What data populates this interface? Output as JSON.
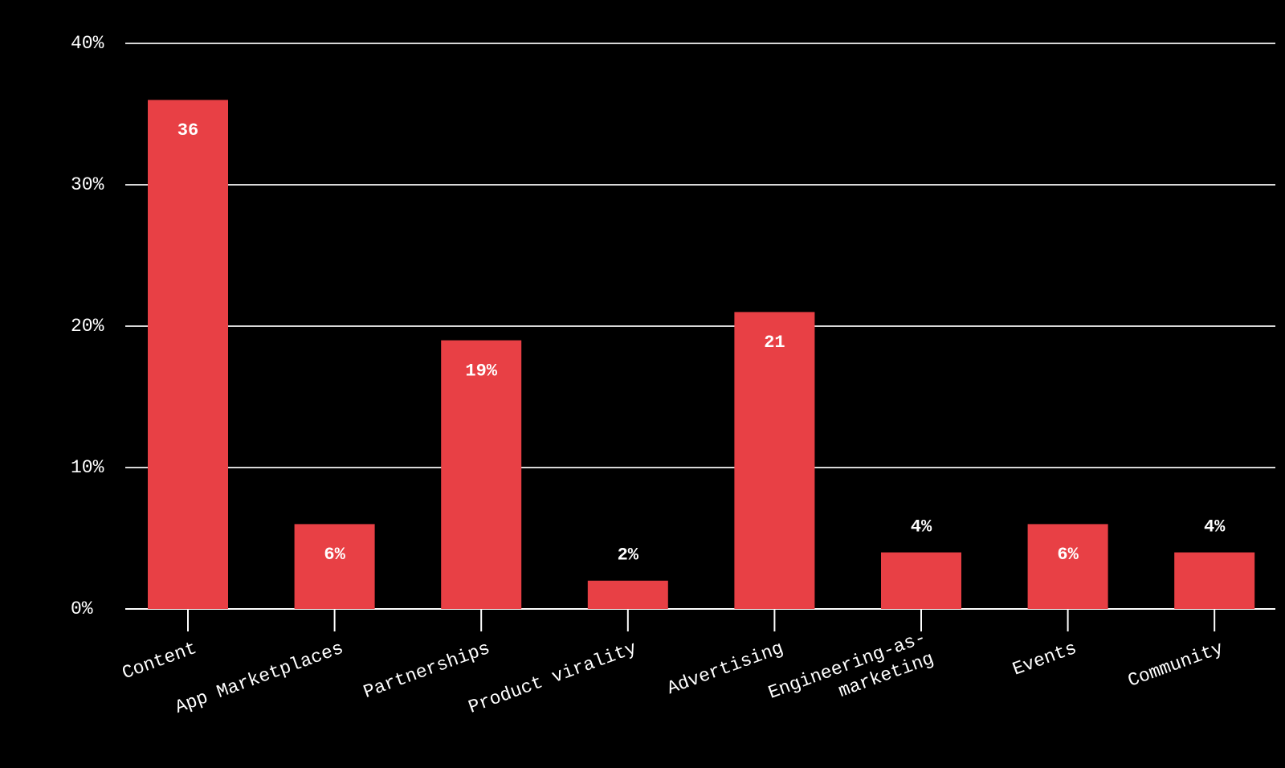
{
  "chart_data": {
    "type": "bar",
    "categories": [
      "Content",
      "App Marketplaces",
      "Partnerships",
      "Product virality",
      "Advertising",
      "Engineering-as-marketing",
      "Events",
      "Community"
    ],
    "values": [
      36,
      6,
      19,
      2,
      21,
      4,
      6,
      4
    ],
    "value_labels": [
      "36",
      "6%",
      "19%",
      "2%",
      "21",
      "4%",
      "6%",
      "4%"
    ],
    "color": "#e84045",
    "ylim": [
      0,
      40
    ],
    "yticks": [
      {
        "value": 0,
        "label": "0%"
      },
      {
        "value": 10,
        "label": "10%"
      },
      {
        "value": 20,
        "label": "20%"
      },
      {
        "value": 30,
        "label": "30%"
      },
      {
        "value": 40,
        "label": "40%"
      }
    ],
    "grid": true
  }
}
